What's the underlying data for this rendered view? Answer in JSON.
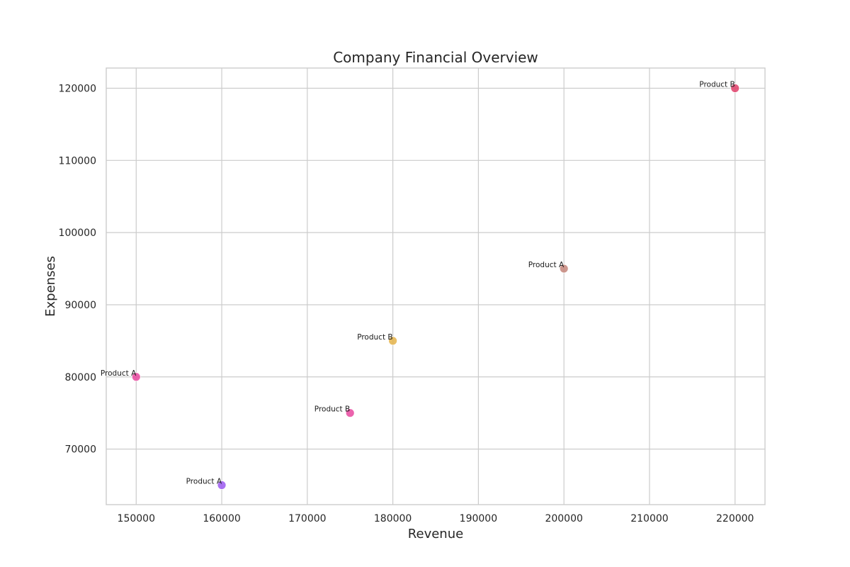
{
  "chart_data": {
    "type": "scatter",
    "title": "Company Financial Overview",
    "xlabel": "Revenue",
    "ylabel": "Expenses",
    "xlim": [
      146500,
      223500
    ],
    "ylim": [
      62300,
      122800
    ],
    "xticks": [
      150000,
      160000,
      170000,
      180000,
      190000,
      200000,
      210000,
      220000
    ],
    "yticks": [
      70000,
      80000,
      90000,
      100000,
      110000,
      120000
    ],
    "grid": true,
    "points": [
      {
        "label": "Product A",
        "x": 150000,
        "y": 80000,
        "color": "#e8489f"
      },
      {
        "label": "Product A",
        "x": 160000,
        "y": 65000,
        "color": "#9b59f0"
      },
      {
        "label": "Product B",
        "x": 175000,
        "y": 75000,
        "color": "#e8489f"
      },
      {
        "label": "Product B",
        "x": 180000,
        "y": 85000,
        "color": "#e4b34a"
      },
      {
        "label": "Product A",
        "x": 200000,
        "y": 95000,
        "color": "#c4857a"
      },
      {
        "label": "Product B",
        "x": 220000,
        "y": 120000,
        "color": "#e0406a"
      }
    ]
  }
}
